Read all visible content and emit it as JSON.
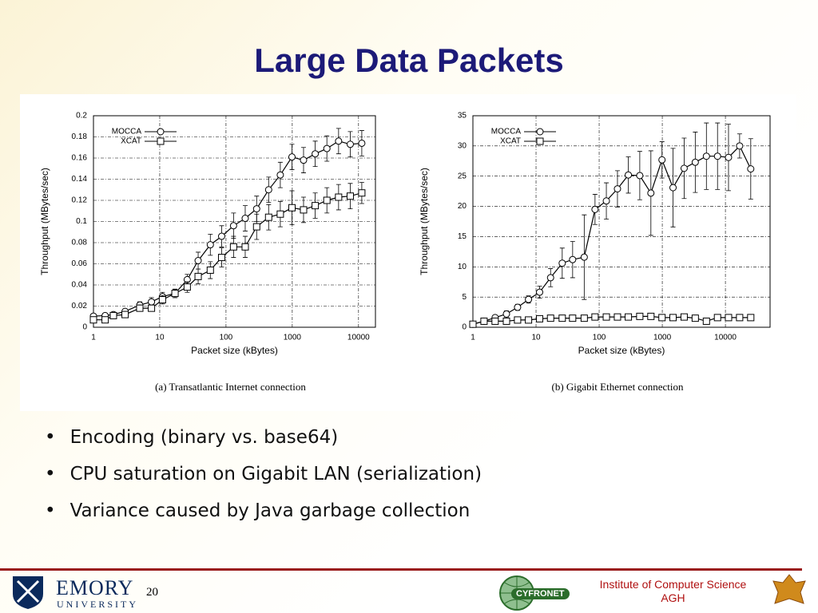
{
  "slide": {
    "title": "Large Data Packets",
    "bullets": [
      "Encoding (binary vs. base64)",
      "CPU saturation on Gigabit LAN (serialization)",
      "Variance caused by Java garbage collection"
    ],
    "footer": {
      "left_logo": "EMORY",
      "left_logo_sub": "UNIVERSITY",
      "page": "20",
      "center_logo": "CYFRONET",
      "institute": "Institute of Computer Science",
      "institute_sub": "AGH"
    }
  },
  "chart_data": [
    {
      "type": "line",
      "caption": "(a) Transatlantic Internet connection",
      "x_label": "Packet size (kBytes)",
      "y_label": "Throughput (MBytes/sec)",
      "x_log": true,
      "grid": true,
      "legend": "top-left",
      "xlim": [
        1,
        18000
      ],
      "xticks": [
        1,
        10,
        100,
        1000,
        10000
      ],
      "ylim": [
        0,
        0.2
      ],
      "yticks": [
        0,
        0.02,
        0.04,
        0.06,
        0.08,
        0.1,
        0.12,
        0.14,
        0.16,
        0.18,
        0.2
      ],
      "x": [
        1,
        1.5,
        2,
        3,
        5,
        7.5,
        11,
        17,
        26,
        38,
        58,
        86,
        130,
        195,
        290,
        440,
        660,
        990,
        1480,
        2220,
        3330,
        5000,
        7500,
        11200
      ],
      "series": [
        {
          "name": "MOCCA",
          "marker": "circle",
          "color": "#000000",
          "values": [
            0.0105,
            0.011,
            0.012,
            0.015,
            0.021,
            0.024,
            0.029,
            0.032,
            0.045,
            0.063,
            0.078,
            0.086,
            0.096,
            0.103,
            0.112,
            0.13,
            0.144,
            0.161,
            0.158,
            0.164,
            0.169,
            0.176,
            0.173,
            0.174
          ],
          "errors": [
            0.002,
            0.002,
            0.002,
            0.002,
            0.003,
            0.004,
            0.004,
            0.004,
            0.005,
            0.008,
            0.01,
            0.01,
            0.012,
            0.012,
            0.012,
            0.012,
            0.012,
            0.012,
            0.012,
            0.012,
            0.012,
            0.012,
            0.012,
            0.012
          ]
        },
        {
          "name": "XCAT",
          "marker": "square",
          "color": "#000000",
          "values": [
            0.007,
            0.007,
            0.011,
            0.012,
            0.018,
            0.018,
            0.026,
            0.032,
            0.038,
            0.048,
            0.054,
            0.066,
            0.076,
            0.076,
            0.095,
            0.104,
            0.107,
            0.113,
            0.111,
            0.115,
            0.12,
            0.123,
            0.124,
            0.127
          ],
          "errors": [
            0.002,
            0.002,
            0.002,
            0.002,
            0.003,
            0.003,
            0.004,
            0.004,
            0.005,
            0.007,
            0.008,
            0.009,
            0.01,
            0.01,
            0.012,
            0.012,
            0.012,
            0.016,
            0.012,
            0.012,
            0.012,
            0.012,
            0.012,
            0.01
          ]
        }
      ]
    },
    {
      "type": "line",
      "caption": "(b) Gigabit Ethernet connection",
      "x_label": "Packet size (kBytes)",
      "y_label": "Throughput (MBytes/sec)",
      "x_log": true,
      "grid": true,
      "legend": "top-left",
      "xlim": [
        1,
        51000
      ],
      "xticks": [
        1,
        10,
        100,
        1000,
        10000
      ],
      "ylim": [
        0,
        35
      ],
      "yticks": [
        0,
        5,
        10,
        15,
        20,
        25,
        30,
        35
      ],
      "x": [
        1,
        1.5,
        2.25,
        3.4,
        5.1,
        7.6,
        11.4,
        17,
        26,
        38,
        58,
        86,
        130,
        195,
        290,
        440,
        660,
        990,
        1480,
        2220,
        3330,
        5000,
        7500,
        11200,
        16800,
        25200
      ],
      "series": [
        {
          "name": "MOCCA",
          "marker": "circle",
          "color": "#000000",
          "values": [
            0.5,
            1,
            1.6,
            2.2,
            3.3,
            4.6,
            5.8,
            8.2,
            10.6,
            11.2,
            11.6,
            19.5,
            20.9,
            22.9,
            25.2,
            25.1,
            22.2,
            27.7,
            23.1,
            26.3,
            27.3,
            28.3,
            28.3,
            28.1,
            30,
            26.2
          ],
          "errors": [
            0.3,
            0.4,
            0.4,
            0.5,
            0.5,
            0.6,
            1,
            1.5,
            2.5,
            3,
            7,
            2.5,
            3,
            3,
            3,
            4,
            7,
            3,
            6.5,
            5,
            5,
            5.5,
            5.5,
            5.5,
            2,
            5
          ]
        },
        {
          "name": "XCAT",
          "marker": "square",
          "color": "#000000",
          "values": [
            0.5,
            1,
            1,
            1,
            1.2,
            1.2,
            1.4,
            1.5,
            1.5,
            1.5,
            1.5,
            1.7,
            1.7,
            1.7,
            1.7,
            1.8,
            1.8,
            1.6,
            1.6,
            1.7,
            1.5,
            1,
            1.6,
            1.6,
            1.6,
            1.6
          ],
          "errors": [
            0.1,
            0.1,
            0.1,
            0.1,
            0.1,
            0.1,
            0.1,
            0.1,
            0.1,
            0.1,
            0.1,
            0.1,
            0.1,
            0.1,
            0.1,
            0.1,
            0.1,
            0.1,
            0.1,
            0.1,
            0.1,
            0.1,
            0.1,
            0.1,
            0.1,
            0.1
          ]
        }
      ]
    }
  ]
}
